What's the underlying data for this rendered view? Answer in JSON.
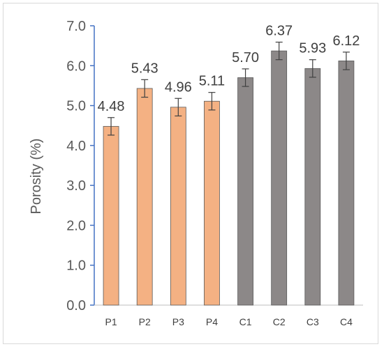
{
  "chart_data": {
    "type": "bar",
    "categories": [
      "P1",
      "P2",
      "P3",
      "P4",
      "C1",
      "C2",
      "C3",
      "C4"
    ],
    "values": [
      4.48,
      5.43,
      4.96,
      5.11,
      5.7,
      6.37,
      5.93,
      6.12
    ],
    "error": [
      0.22,
      0.22,
      0.22,
      0.22,
      0.22,
      0.22,
      0.22,
      0.22
    ],
    "data_labels": [
      "4.48",
      "5.43",
      "4.96",
      "5.11",
      "5.70",
      "6.37",
      "5.93",
      "6.12"
    ],
    "bar_colors": [
      "#f4b183",
      "#f4b183",
      "#f4b183",
      "#f4b183",
      "#8c8888",
      "#8c8888",
      "#8c8888",
      "#8c8888"
    ],
    "ylabel": "Porosity (%)",
    "xlabel": "",
    "ylim": [
      0,
      7
    ],
    "yticks": [
      "0.0",
      "1.0",
      "2.0",
      "3.0",
      "4.0",
      "5.0",
      "6.0",
      "7.0"
    ],
    "grid": false,
    "legend": "none",
    "axis_color": "#4472c4",
    "bar_border_color": "#595959"
  }
}
